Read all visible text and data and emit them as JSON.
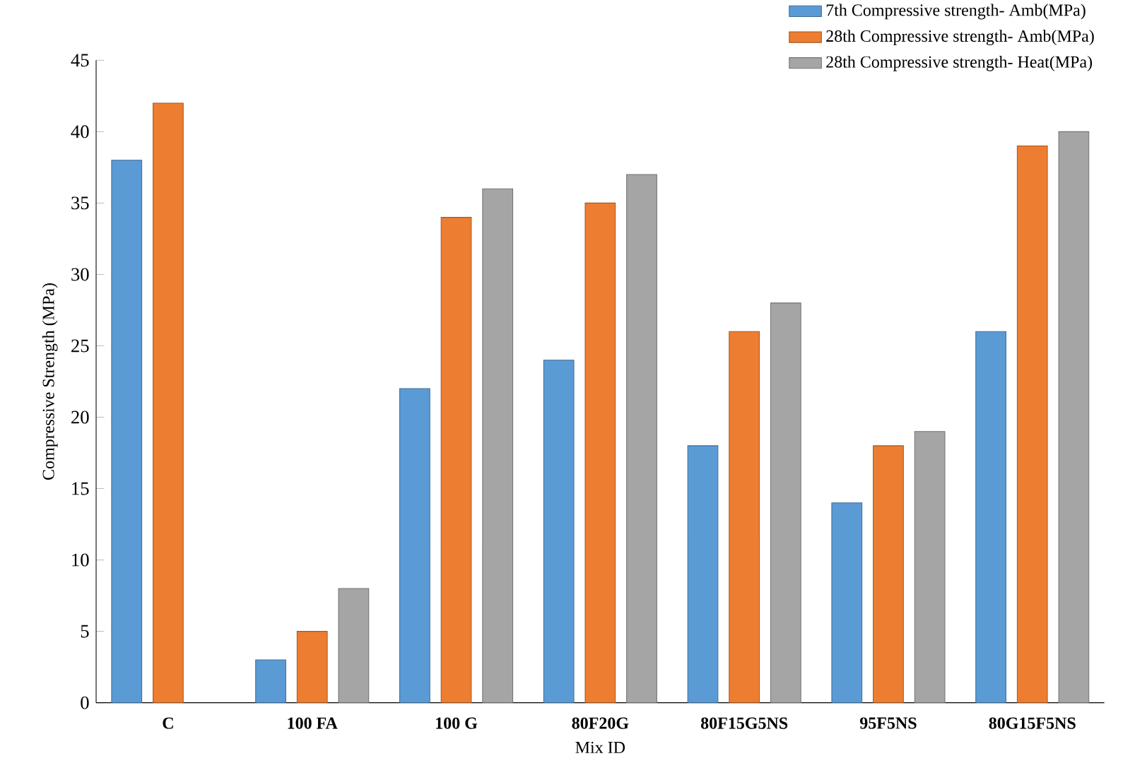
{
  "chart_data": {
    "type": "bar",
    "xlabel": "Mix ID",
    "ylabel": "Compressive Strength (MPa)",
    "categories": [
      "C",
      "100 FA",
      "100 G",
      "80F20G",
      "80F15G5NS",
      "95F5NS",
      "80G15F5NS"
    ],
    "series": [
      {
        "name": "7th Compressive strength- Amb(MPa)",
        "color": "#5b9bd5",
        "values": [
          38,
          3,
          22,
          24,
          18,
          14,
          26
        ]
      },
      {
        "name": "28th Compressive strength- Amb(MPa)",
        "color": "#ed7d31",
        "values": [
          42,
          5,
          34,
          35,
          26,
          18,
          39
        ]
      },
      {
        "name": "28th Compressive strength- Heat(MPa)",
        "color": "#a5a5a5",
        "values": [
          null,
          8,
          36,
          37,
          28,
          19,
          40
        ]
      }
    ],
    "ylim": [
      0,
      45
    ],
    "yticks": [
      0,
      5,
      10,
      15,
      20,
      25,
      30,
      35,
      40,
      45
    ],
    "grid": false,
    "legend": "top right"
  }
}
